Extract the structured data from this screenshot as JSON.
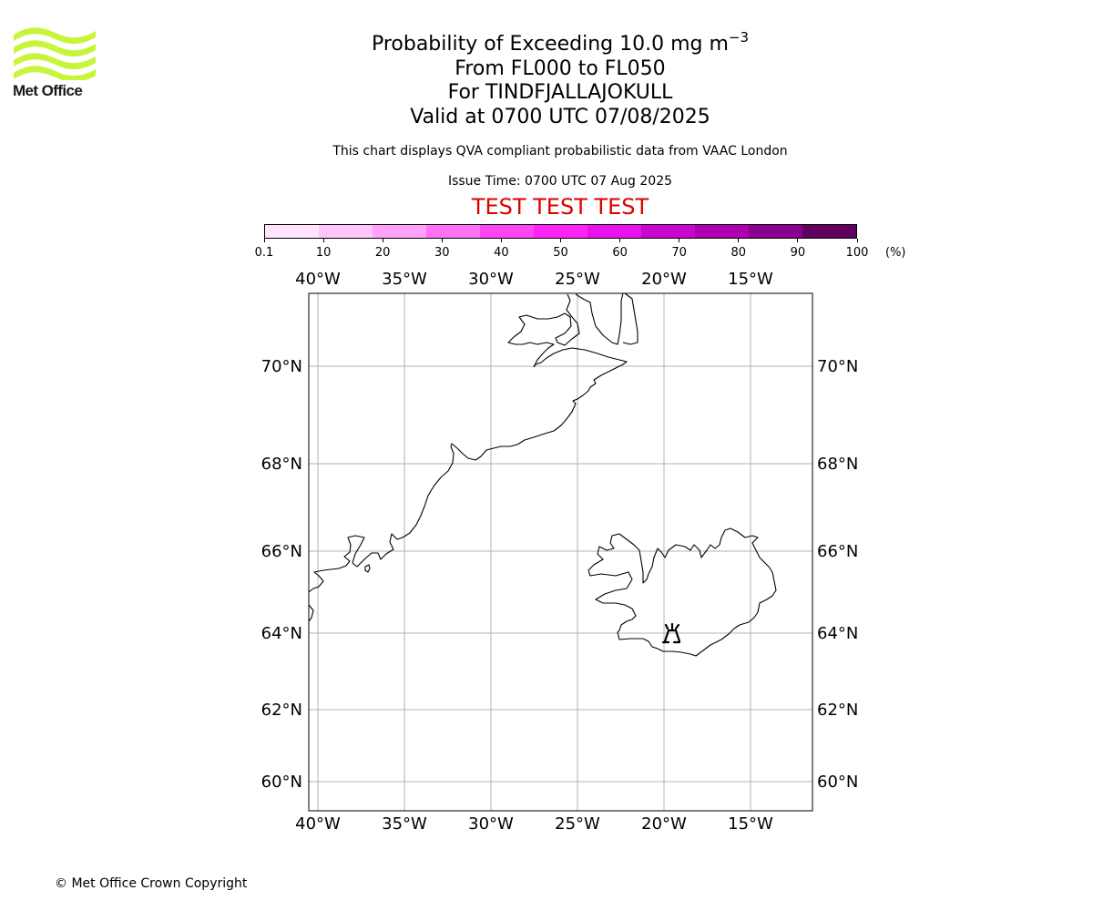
{
  "logo": {
    "name": "Met Office",
    "color": "#c8f53c"
  },
  "header": {
    "title_main": "Probability of Exceeding 10.0 mg m",
    "title_superscript": "−3",
    "level_range": "From FL000 to FL050",
    "volcano_line": "For TINDFJALLAJOKULL",
    "valid_line": "Valid at 0700 UTC 07/08/2025",
    "description": "This chart displays QVA compliant probabilistic data from VAAC London",
    "issue_time": "Issue Time: 0700 UTC 07 Aug 2025",
    "test_banner": "TEST TEST TEST",
    "test_banner_color": "#dd0000"
  },
  "colorbar": {
    "unit": "(%)",
    "tick_labels": [
      "0.1",
      "10",
      "20",
      "30",
      "40",
      "50",
      "60",
      "70",
      "80",
      "90",
      "100"
    ],
    "colors": [
      "#ffe4fc",
      "#ffc6fb",
      "#ffa2f8",
      "#ff72f6",
      "#ff44f5",
      "#ff22f4",
      "#e812ea",
      "#c806cc",
      "#ae00b0",
      "#8a0090",
      "#620060"
    ]
  },
  "map": {
    "projection": "polar stereographic",
    "gridlines": true,
    "lon_labels": [
      "40°W",
      "35°W",
      "30°W",
      "25°W",
      "20°W",
      "15°W"
    ],
    "lat_labels": [
      "70°N",
      "68°N",
      "66°N",
      "64°N",
      "62°N",
      "60°N"
    ],
    "volcano_symbol": "volcano-icon",
    "volcano": {
      "name": "TINDFJALLAJOKULL",
      "lat": 63.8,
      "lon": -19.6
    }
  },
  "footer": {
    "copyright": "© Met Office Crown Copyright"
  }
}
